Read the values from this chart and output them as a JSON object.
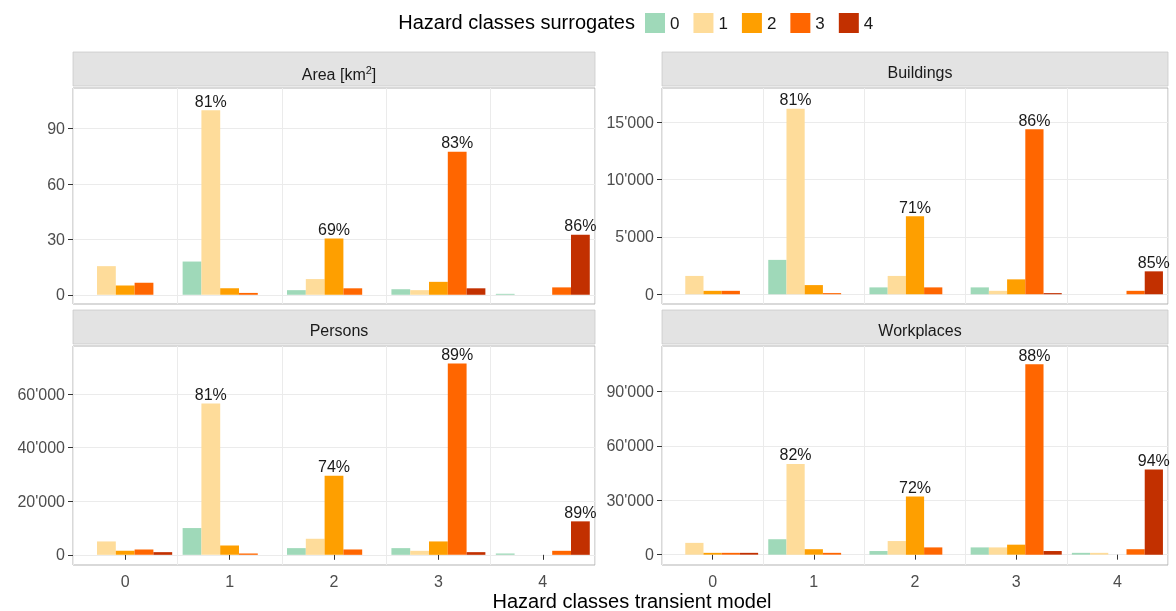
{
  "chart_data": [
    {
      "type": "bar",
      "title": "Area [km$^{2}$]",
      "legend_title": "Hazard classes surrogates",
      "legend": "top",
      "grid": true,
      "tick_labels": "y",
      "categories": [
        "0",
        "1",
        "2",
        "3",
        "4"
      ],
      "ylim": [
        -5,
        112
      ],
      "yticks": [
        0,
        30,
        60,
        90
      ],
      "annotations": [
        "81%",
        "69%",
        "83%",
        "86%"
      ],
      "series": [
        {
          "name": "0",
          "color": "#9fd9b9",
          "values": [
            null,
            18,
            2.5,
            3,
            0.5
          ]
        },
        {
          "name": "1",
          "color": "#fedc9a",
          "values": [
            15.5,
            100,
            8.5,
            2.5,
            0
          ]
        },
        {
          "name": "2",
          "color": "#fe9f00",
          "values": [
            5,
            3.5,
            30.5,
            7,
            0
          ]
        },
        {
          "name": "3",
          "color": "#ff6600",
          "values": [
            6.5,
            1,
            3.5,
            77.5,
            4
          ]
        },
        {
          "name": "4",
          "color": "#c23000",
          "values": [
            null,
            null,
            null,
            3.5,
            32.5
          ]
        }
      ]
    },
    {
      "type": "bar",
      "title": "Buildings",
      "grid": true,
      "tick_labels": "y",
      "categories": [
        "0",
        "1",
        "2",
        "3",
        "4"
      ],
      "ylim": [
        -850,
        18000
      ],
      "yticks": [
        0,
        {
          "value": 5000,
          "label": "5'000"
        },
        {
          "value": 10000,
          "label": "10'000"
        },
        {
          "value": 15000,
          "label": "15'000"
        }
      ],
      "annotations": [
        "81%",
        "71%",
        "86%",
        "85%"
      ],
      "series": [
        {
          "color": "#9fd9b9",
          "values": [
            null,
            3000,
            600,
            600,
            0
          ]
        },
        {
          "color": "#fedc9a",
          "values": [
            1600,
            16200,
            1600,
            300,
            0
          ]
        },
        {
          "color": "#fe9f00",
          "values": [
            300,
            800,
            6800,
            1300,
            0
          ]
        },
        {
          "color": "#ff6600",
          "values": [
            300,
            100,
            600,
            14400,
            300
          ]
        },
        {
          "color": "#c23000",
          "values": [
            null,
            null,
            null,
            100,
            2000
          ]
        }
      ]
    },
    {
      "type": "bar",
      "title": "Persons",
      "xlabel": "Hazard classes transient model",
      "grid": true,
      "categories": [
        "0",
        "1",
        "2",
        "3",
        "4"
      ],
      "ylim": [
        -3800,
        78000
      ],
      "yticks": [
        0,
        {
          "value": 20000,
          "label": "20'000"
        },
        {
          "value": 40000,
          "label": "40'000"
        },
        {
          "value": 60000,
          "label": "60'000"
        }
      ],
      "annotations": [
        "81%",
        "74%",
        "89%",
        "89%"
      ],
      "series": [
        {
          "color": "#9fd9b9",
          "values": [
            null,
            10000,
            2500,
            2500,
            500
          ]
        },
        {
          "color": "#fedc9a",
          "values": [
            5000,
            56500,
            6000,
            1500,
            0
          ]
        },
        {
          "color": "#fe9f00",
          "values": [
            1500,
            3500,
            29500,
            5000,
            0
          ]
        },
        {
          "color": "#ff6600",
          "values": [
            2000,
            500,
            2000,
            71500,
            1500
          ]
        },
        {
          "color": "#c23000",
          "values": [
            1000,
            null,
            null,
            1000,
            12500
          ]
        }
      ]
    },
    {
      "type": "bar",
      "title": "Workplaces",
      "grid": true,
      "categories": [
        "0",
        "1",
        "2",
        "3",
        "4"
      ],
      "ylim": [
        -5700,
        115000
      ],
      "yticks": [
        0,
        {
          "value": 30000,
          "label": "30'000"
        },
        {
          "value": 60000,
          "label": "60'000"
        },
        {
          "value": 90000,
          "label": "90'000"
        }
      ],
      "annotations": [
        "82%",
        "72%",
        "88%",
        "94%"
      ],
      "series": [
        {
          "color": "#9fd9b9",
          "values": [
            null,
            8500,
            2000,
            4000,
            1000
          ]
        },
        {
          "color": "#fedc9a",
          "values": [
            6500,
            50000,
            7500,
            4000,
            1000
          ]
        },
        {
          "color": "#fe9f00",
          "values": [
            1000,
            3000,
            32000,
            5500,
            0
          ]
        },
        {
          "color": "#ff6600",
          "values": [
            1000,
            1000,
            4000,
            105000,
            3000
          ]
        },
        {
          "color": "#c23000",
          "values": [
            1000,
            null,
            null,
            2000,
            47000
          ]
        }
      ]
    }
  ]
}
